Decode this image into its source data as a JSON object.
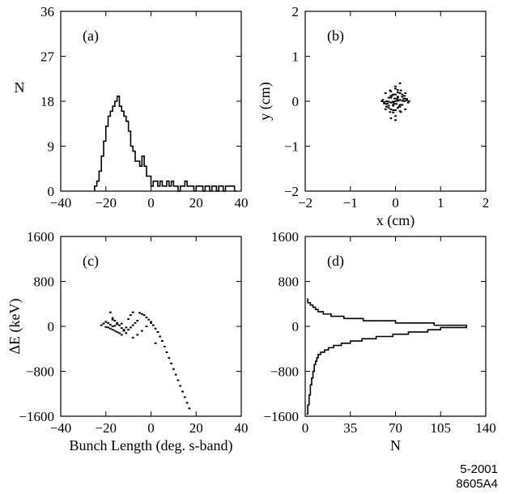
{
  "footer": {
    "date_code": "5-2001",
    "figure_code": "8605A4"
  },
  "chart_data": [
    {
      "id": "a",
      "type": "line",
      "panel_label": "(a)",
      "xlabel": "",
      "ylabel": "N",
      "xlim": [
        -40,
        40
      ],
      "ylim": [
        0,
        36
      ],
      "xticks": [
        -40,
        -20,
        0,
        20,
        40
      ],
      "yticks": [
        0,
        9,
        18,
        27,
        36
      ],
      "xtick_labels": [
        "−40",
        "−20",
        "0",
        "20",
        "40"
      ],
      "ytick_labels": [
        "0",
        "9",
        "18",
        "27",
        "36"
      ],
      "step": true,
      "series": [
        {
          "x": [
            -25,
            -24,
            -23,
            -22,
            -21,
            -20,
            -19,
            -18,
            -17,
            -16,
            -15,
            -14,
            -13,
            -12,
            -11,
            -10,
            -9,
            -8,
            -7,
            -6,
            -5,
            -4,
            -3,
            -2,
            -1,
            0,
            1,
            2,
            3,
            4,
            5,
            6,
            7,
            8,
            9,
            10,
            11,
            12,
            13,
            14,
            15,
            16,
            17,
            18,
            19,
            20,
            21,
            22,
            23,
            24,
            25,
            26,
            27,
            28,
            29,
            30,
            31,
            32,
            33,
            34,
            35,
            36,
            37
          ],
          "values": [
            1,
            2,
            4,
            7,
            10,
            13,
            15,
            16,
            17,
            18,
            19,
            17,
            16,
            15,
            14,
            12,
            9,
            8,
            6,
            6,
            5,
            7,
            5,
            3,
            3,
            1,
            2,
            2,
            1,
            2,
            1,
            1,
            2,
            1,
            2,
            1,
            1,
            0,
            1,
            1,
            2,
            1,
            1,
            1,
            0,
            1,
            1,
            1,
            0,
            1,
            1,
            0,
            1,
            1,
            0,
            1,
            1,
            0,
            1,
            1,
            1,
            1,
            0
          ]
        }
      ]
    },
    {
      "id": "b",
      "type": "scatter",
      "panel_label": "(b)",
      "xlabel": "x  (cm)",
      "ylabel": "y  (cm)",
      "xlim": [
        -2,
        2
      ],
      "ylim": [
        -2,
        2
      ],
      "xticks": [
        -2,
        -1,
        0,
        1,
        2
      ],
      "yticks": [
        -2,
        -1,
        0,
        1,
        2
      ],
      "xtick_labels": [
        "−2",
        "−1",
        "0",
        "1",
        "2"
      ],
      "ytick_labels": [
        "−2",
        "−1",
        "0",
        "1",
        "2"
      ],
      "series": [
        {
          "x": [
            0,
            0.05,
            -0.05,
            0.1,
            -0.1,
            0.15,
            -0.15,
            0.2,
            -0.2,
            0.25,
            -0.25,
            0.05,
            -0.05,
            0.1,
            -0.1,
            0.15,
            -0.15,
            0.2,
            -0.2,
            0,
            0.05,
            -0.05,
            0.1,
            -0.1,
            0.15,
            -0.15,
            0,
            0.05,
            -0.05,
            0.1,
            -0.1,
            0.15,
            -0.15,
            0.2,
            -0.2,
            0.25,
            -0.25,
            0.05,
            -0.05,
            0.1,
            -0.1,
            0,
            0.3,
            -0.3,
            0,
            0,
            0.22,
            -0.22,
            0.22,
            -0.22,
            0.12,
            -0.12,
            0.12,
            -0.12,
            0.03,
            -0.03,
            0.08,
            -0.08,
            0.18,
            -0.18,
            0.28,
            -0.28,
            0,
            0.1,
            -0.1,
            0.05,
            -0.05,
            0.02,
            -0.02,
            0.06,
            -0.06
          ],
          "y": [
            0,
            0.02,
            -0.02,
            0.03,
            -0.03,
            0.01,
            -0.01,
            0,
            0,
            0.02,
            -0.02,
            0.08,
            -0.08,
            -0.08,
            0.08,
            0.1,
            -0.1,
            0.06,
            -0.06,
            0.15,
            -0.15,
            0.15,
            -0.12,
            0.12,
            -0.08,
            0.08,
            -0.2,
            0.2,
            -0.2,
            0.18,
            -0.18,
            0.15,
            -0.15,
            0.12,
            -0.12,
            0.05,
            -0.05,
            0.25,
            -0.25,
            -0.22,
            0.22,
            0.28,
            0,
            0,
            0.33,
            -0.33,
            0.18,
            -0.18,
            -0.18,
            0.18,
            0.24,
            -0.24,
            -0.24,
            0.24,
            0.05,
            -0.05,
            -0.12,
            0.12,
            0.05,
            -0.05,
            -0.03,
            0.03,
            -0.42,
            0.4,
            -0.38,
            0.1,
            -0.1,
            -0.06,
            0.06,
            0.01,
            -0.01
          ]
        }
      ]
    },
    {
      "id": "c",
      "type": "scatter",
      "panel_label": "(c)",
      "xlabel": "Bunch Length  (deg. s-band)",
      "ylabel": "ΔE  (keV)",
      "xlim": [
        -40,
        40
      ],
      "ylim": [
        -1600,
        1600
      ],
      "xticks": [
        -40,
        -20,
        0,
        20,
        40
      ],
      "yticks": [
        -1600,
        -800,
        0,
        800,
        1600
      ],
      "xtick_labels": [
        "−40",
        "−20",
        "0",
        "20",
        "40"
      ],
      "ytick_labels": [
        "−1600",
        "−800",
        "0",
        "800",
        "1600"
      ],
      "series": [
        {
          "x": [
            -22,
            -21,
            -20,
            -19,
            -18,
            -17,
            -16,
            -15,
            -14,
            -13,
            -12,
            -18,
            -17,
            -16,
            -15,
            -19,
            -14,
            -13,
            -20,
            -16,
            -15,
            -17,
            -12,
            -11,
            -10,
            -9,
            -8,
            -7,
            -6,
            -10,
            -9,
            -8,
            -5,
            -4,
            -3,
            -2,
            -1,
            0,
            1,
            2,
            3,
            4,
            5,
            6,
            7,
            8,
            9,
            10,
            11,
            12,
            13,
            14,
            15,
            16,
            17,
            -6,
            -4,
            -2,
            0,
            2,
            -8,
            -11,
            -13,
            -17,
            -18
          ],
          "y": [
            20,
            50,
            80,
            60,
            30,
            0,
            10,
            40,
            20,
            -30,
            -60,
            -40,
            -60,
            -80,
            -100,
            -20,
            -120,
            -150,
            -10,
            100,
            60,
            150,
            -80,
            -120,
            -60,
            -20,
            20,
            60,
            100,
            130,
            200,
            250,
            240,
            220,
            200,
            160,
            120,
            60,
            20,
            -40,
            -100,
            -180,
            -260,
            -360,
            -460,
            -560,
            -660,
            -760,
            -860,
            -960,
            -1060,
            -1160,
            -1260,
            -1360,
            -1460,
            -150,
            -80,
            0,
            80,
            -300,
            -200,
            -20,
            50,
            120,
            250
          ]
        }
      ]
    },
    {
      "id": "d",
      "type": "line",
      "panel_label": "(d)",
      "xlabel": "N",
      "ylabel": "",
      "xlim": [
        0,
        140
      ],
      "ylim": [
        -1600,
        1600
      ],
      "xticks": [
        0,
        35,
        70,
        105,
        140
      ],
      "yticks": [
        -1600,
        -800,
        0,
        800,
        1600
      ],
      "xtick_labels": [
        "0",
        "35",
        "70",
        "105",
        "140"
      ],
      "ytick_labels": [
        "−1600",
        "−800",
        "0",
        "800",
        "1600"
      ],
      "orientation": "horizontal",
      "step": true,
      "series": [
        {
          "y": [
            500,
            460,
            420,
            380,
            340,
            300,
            260,
            220,
            180,
            140,
            100,
            60,
            20,
            0,
            -20,
            -60,
            -100,
            -140,
            -180,
            -220,
            -260,
            -300,
            -340,
            -380,
            -420,
            -460,
            -500,
            -560,
            -620,
            -680,
            -740,
            -800,
            -860,
            -920,
            -980,
            -1040,
            -1100,
            -1160,
            -1220,
            -1280,
            -1340,
            -1400,
            -1460,
            -1520,
            -1560
          ],
          "values": [
            2,
            2,
            4,
            6,
            8,
            10,
            14,
            20,
            30,
            45,
            70,
            100,
            125,
            125,
            105,
            95,
            80,
            68,
            55,
            44,
            35,
            28,
            22,
            18,
            15,
            12,
            10,
            9,
            8,
            7,
            7,
            6,
            6,
            5,
            5,
            4,
            4,
            4,
            3,
            3,
            3,
            2,
            2,
            2,
            1
          ]
        }
      ]
    }
  ]
}
